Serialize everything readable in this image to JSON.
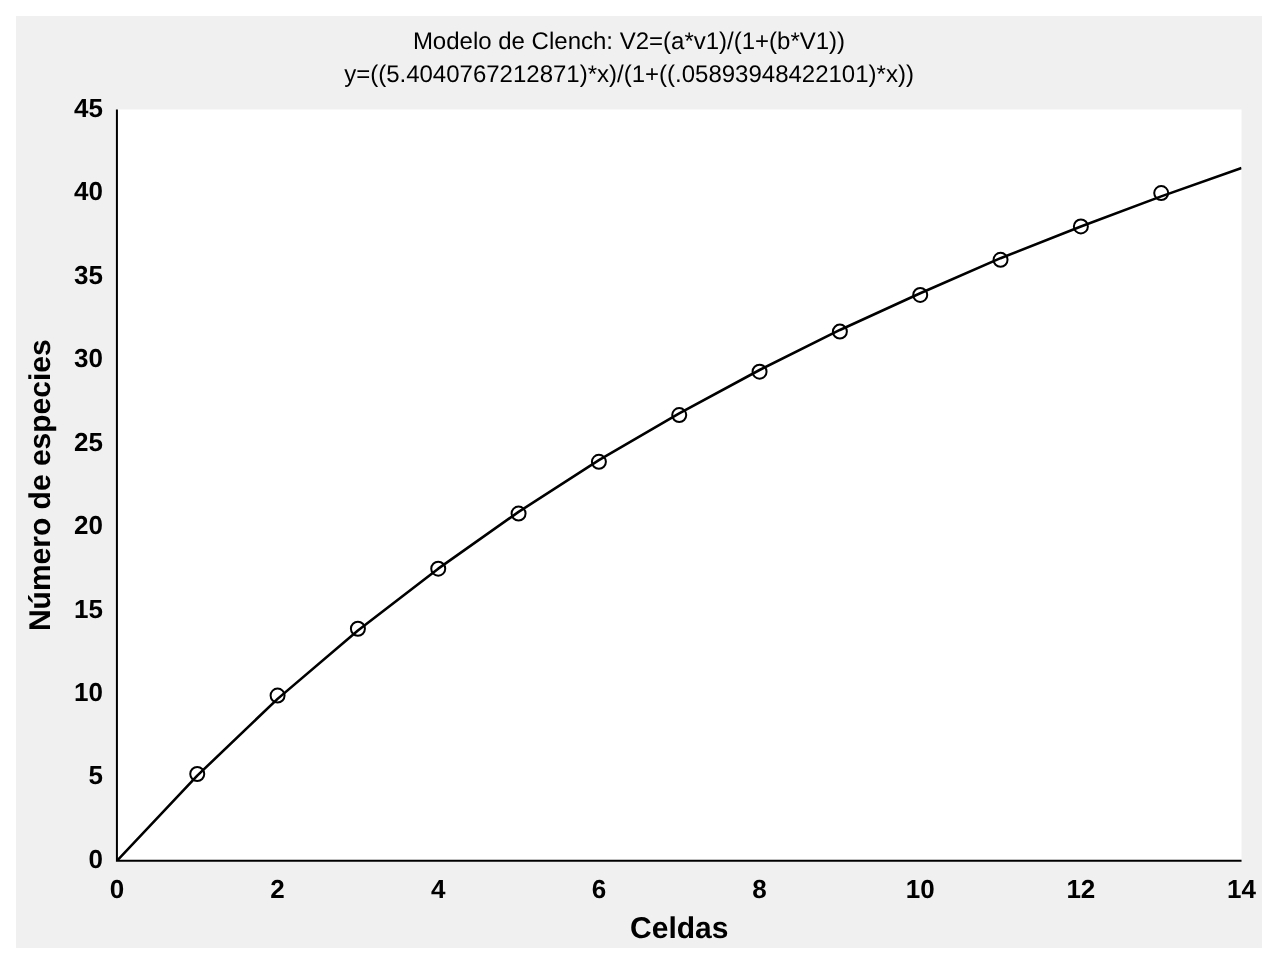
{
  "chart_data": {
    "type": "scatter",
    "title": "Modelo de Clench: V2=(a*v1)/(1+(b*V1))",
    "subtitle": "y=((5.4040767212871)*x)/(1+((.05893948422101)*x))",
    "xlabel": "Celdas",
    "ylabel": "Número de especies",
    "xlim": [
      0,
      14
    ],
    "xticks": [
      0,
      2,
      4,
      6,
      8,
      10,
      12,
      14
    ],
    "ylim": [
      0,
      45
    ],
    "yticks": [
      0,
      5,
      10,
      15,
      20,
      25,
      30,
      35,
      40,
      45
    ],
    "grid": false,
    "legend": false,
    "series": [
      {
        "type": "scatter",
        "marker": "circle",
        "color": "#000000",
        "x": [
          1,
          2,
          3,
          4,
          5,
          6,
          7,
          8,
          9,
          10,
          11,
          12,
          13
        ],
        "values": [
          5.2,
          9.9,
          13.9,
          17.5,
          20.8,
          23.9,
          26.7,
          29.3,
          31.7,
          33.9,
          36.0,
          38.0,
          40.0
        ]
      },
      {
        "type": "line",
        "marker": "none",
        "line_style": "solid",
        "color": "#000000",
        "x": [
          0,
          1,
          2,
          3,
          4,
          5,
          6,
          7,
          8,
          9,
          10,
          11,
          12,
          13,
          14
        ],
        "values": [
          0,
          5.1,
          9.7,
          13.8,
          17.5,
          20.9,
          24.0,
          26.8,
          29.4,
          31.8,
          34.0,
          36.1,
          38.0,
          39.8,
          41.5
        ]
      }
    ]
  }
}
